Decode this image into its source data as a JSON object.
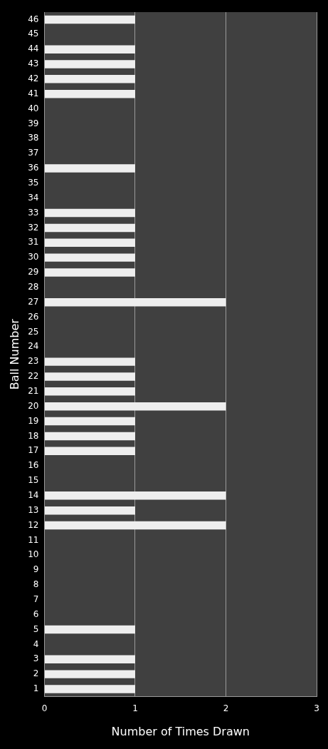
{
  "chart_data": {
    "type": "bar",
    "orientation": "horizontal",
    "xlabel": "Number of Times Drawn",
    "ylabel": "Ball Number",
    "categories": [
      "46",
      "45",
      "44",
      "43",
      "42",
      "41",
      "40",
      "39",
      "38",
      "37",
      "36",
      "35",
      "34",
      "33",
      "32",
      "31",
      "30",
      "29",
      "28",
      "27",
      "26",
      "25",
      "24",
      "23",
      "22",
      "21",
      "20",
      "19",
      "18",
      "17",
      "16",
      "15",
      "14",
      "13",
      "12",
      "11",
      "10",
      "9",
      "8",
      "7",
      "6",
      "5",
      "4",
      "3",
      "2",
      "1"
    ],
    "values": [
      1,
      0,
      1,
      1,
      1,
      1,
      0,
      0,
      0,
      0,
      1,
      0,
      0,
      1,
      1,
      1,
      1,
      1,
      0,
      2,
      0,
      0,
      0,
      1,
      1,
      1,
      2,
      1,
      1,
      1,
      0,
      0,
      2,
      1,
      2,
      0,
      0,
      0,
      0,
      0,
      0,
      1,
      0,
      1,
      1,
      1
    ],
    "color": "#eeeeee",
    "xlim": [
      0,
      3
    ],
    "xticks": [
      0,
      1,
      2,
      3
    ],
    "grid": "x"
  }
}
